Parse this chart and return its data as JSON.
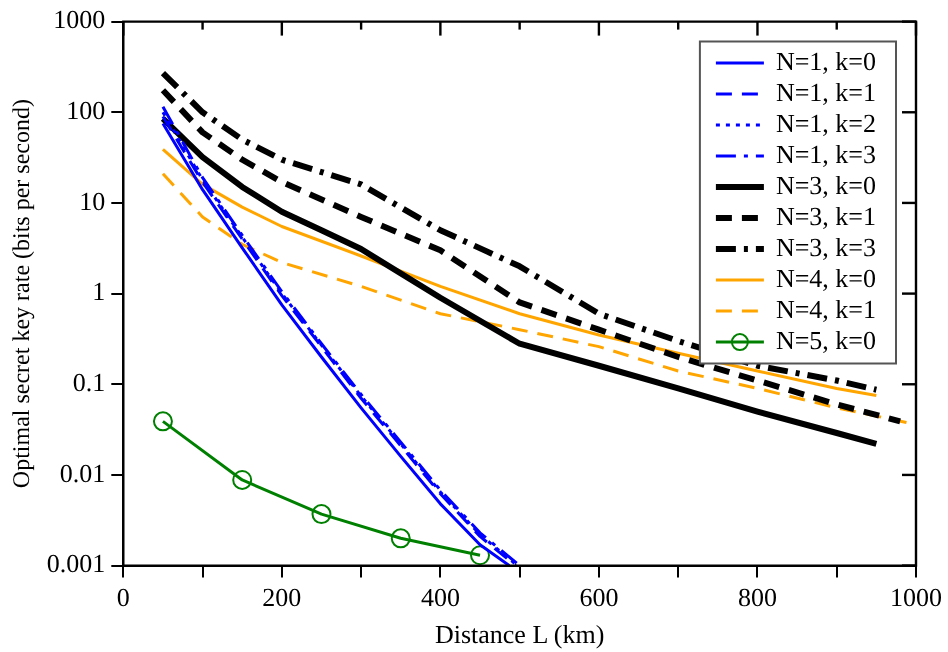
{
  "chart_data": {
    "type": "line",
    "xlabel": "Distance L (km)",
    "ylabel": "Optimal secret key rate (bits per second)",
    "log": "y",
    "legend": "top right",
    "grid": false,
    "marker": "none",
    "xlim": [
      0,
      1000
    ],
    "xticks": [
      0,
      {
        "value": 100,
        "label": null
      },
      200,
      {
        "value": 300,
        "label": null
      },
      400,
      {
        "value": 500,
        "label": null
      },
      600,
      {
        "value": 700,
        "label": null
      },
      800,
      {
        "value": 900,
        "label": null
      },
      1000
    ],
    "ylim": [
      0.001,
      1000
    ],
    "yticks": [
      0.001,
      0.01,
      0.1,
      1,
      10,
      100,
      1000
    ],
    "series": [
      {
        "name": "N=1, k=0",
        "color": "#0000ff",
        "line_style": "solid",
        "x": [
          50,
          100,
          150,
          200,
          250,
          300,
          350,
          400,
          450,
          487
        ],
        "values": [
          75,
          14,
          3.2,
          0.75,
          0.2,
          0.055,
          0.016,
          0.0048,
          0.0017,
          0.001
        ]
      },
      {
        "name": "N=1, k=1",
        "color": "#0000ff",
        "line_style": "dashed",
        "x": [
          50,
          100,
          150,
          200,
          250,
          300,
          350,
          400,
          450,
          495
        ],
        "values": [
          90,
          17,
          4,
          0.95,
          0.26,
          0.07,
          0.021,
          0.0062,
          0.0021,
          0.001
        ]
      },
      {
        "name": "N=1, k=2",
        "color": "#0000ff",
        "line_style": "dotted",
        "x": [
          50,
          100,
          150,
          200,
          250,
          300,
          350,
          400,
          450,
          497
        ],
        "values": [
          100,
          18,
          4.2,
          1,
          0.27,
          0.074,
          0.022,
          0.0065,
          0.0022,
          0.001
        ]
      },
      {
        "name": "N=1, k=3",
        "color": "#0000ff",
        "line_style": "dashdot",
        "x": [
          50,
          100,
          150,
          200,
          250,
          300,
          350,
          400,
          450,
          500
        ],
        "values": [
          115,
          19,
          4.4,
          1.05,
          0.28,
          0.077,
          0.023,
          0.0068,
          0.0023,
          0.001
        ]
      },
      {
        "name": "N=3, k=0",
        "color": "#000000",
        "line_style": "solid",
        "x": [
          50,
          100,
          150,
          200,
          250,
          300,
          400,
          500,
          600,
          700,
          800,
          900,
          950
        ],
        "values": [
          85,
          32,
          15,
          8,
          5,
          3.1,
          0.9,
          0.28,
          0.16,
          0.09,
          0.05,
          0.029,
          0.022
        ]
      },
      {
        "name": "N=3, k=1",
        "color": "#000000",
        "line_style": "dashed",
        "x": [
          50,
          100,
          150,
          200,
          300,
          400,
          500,
          600,
          700,
          800,
          900,
          980
        ],
        "values": [
          175,
          60,
          30,
          17,
          7,
          3,
          0.8,
          0.4,
          0.2,
          0.11,
          0.06,
          0.039
        ]
      },
      {
        "name": "N=3, k=3",
        "color": "#000000",
        "line_style": "dashdot",
        "x": [
          50,
          100,
          150,
          200,
          300,
          400,
          500,
          600,
          700,
          800,
          900,
          950
        ],
        "values": [
          270,
          100,
          50,
          30,
          16,
          5,
          2,
          0.6,
          0.3,
          0.16,
          0.11,
          0.087
        ]
      },
      {
        "name": "N=4, k=0",
        "color": "#ffa500",
        "line_style": "solid",
        "x": [
          50,
          100,
          150,
          200,
          300,
          400,
          500,
          600,
          700,
          800,
          900,
          950
        ],
        "values": [
          39,
          16,
          9,
          5.5,
          2.6,
          1.2,
          0.6,
          0.35,
          0.22,
          0.14,
          0.09,
          0.075
        ]
      },
      {
        "name": "N=4, k=1",
        "color": "#ffa500",
        "line_style": "dashed",
        "x": [
          50,
          100,
          150,
          200,
          300,
          400,
          500,
          600,
          700,
          800,
          900,
          1000
        ],
        "values": [
          21,
          7,
          3.5,
          2.2,
          1.2,
          0.6,
          0.4,
          0.26,
          0.14,
          0.09,
          0.055,
          0.036
        ]
      },
      {
        "name": "N=5, k=0",
        "color": "#008000",
        "line_style": "solid",
        "marker": "circle",
        "x": [
          50,
          150,
          250,
          350,
          450
        ],
        "values": [
          0.039,
          0.0088,
          0.0037,
          0.002,
          0.0013
        ]
      }
    ]
  }
}
